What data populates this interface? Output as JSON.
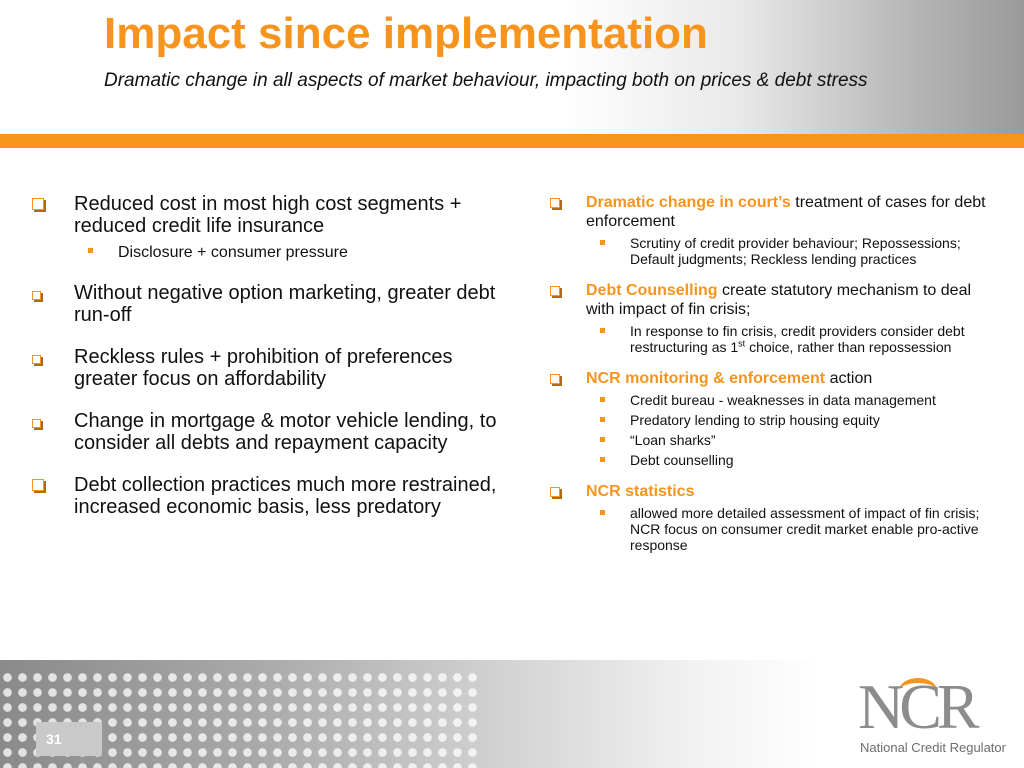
{
  "header": {
    "title": "Impact since implementation",
    "subtitle": "Dramatic change in all aspects of market behaviour, impacting both on prices & debt stress"
  },
  "left": {
    "items": [
      {
        "text": "Reduced cost in most high cost segments + reduced credit life insurance",
        "subs": [
          "Disclosure + consumer pressure"
        ]
      },
      {
        "text": "Without negative option marketing, greater debt run-off"
      },
      {
        "text": "Reckless rules + prohibition of preferences greater focus on affordability"
      },
      {
        "text": "Change in mortgage & motor vehicle lending, to consider all debts and repayment capacity"
      },
      {
        "text": "Debt collection practices much more restrained, increased economic basis, less predatory"
      }
    ]
  },
  "right": {
    "items": [
      {
        "highlight": "Dramatic change in court’s",
        "rest": " treatment of cases for debt enforcement",
        "subs": [
          "Scrutiny of credit provider behaviour; Repossessions; Default judgments; Reckless lending practices"
        ]
      },
      {
        "highlight": "Debt Counselling",
        "rest": " create statutory mechanism to deal with impact of fin crisis;",
        "sub_parts": {
          "before": "In response to fin crisis, credit providers consider debt restructuring as 1",
          "sup": "st",
          "after": " choice, rather than repossession"
        }
      },
      {
        "highlight": "NCR monitoring & enforcement",
        "rest": " action",
        "subs": [
          "Credit bureau - weaknesses in data management",
          "Predatory lending to strip housing equity",
          "“Loan sharks”",
          "Debt counselling"
        ]
      },
      {
        "highlight": "NCR statistics",
        "rest": "",
        "subs": [
          "allowed more detailed assessment of impact of fin crisis;  NCR focus on consumer credit market enable pro-active response"
        ]
      }
    ]
  },
  "footer": {
    "page_number": "31",
    "logo_text": "NCR",
    "logo_subtitle": "National Credit Regulator"
  },
  "colors": {
    "accent": "#f7941d",
    "text": "#111111"
  }
}
